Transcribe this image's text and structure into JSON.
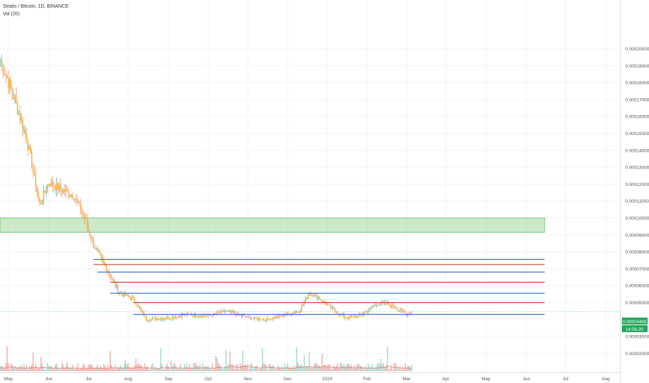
{
  "header": {
    "symbol_line": "Stratis / Bitcoin, 1D, BINANCE",
    "volume_label": "Vol (20)"
  },
  "chart_data": {
    "type": "candlestick",
    "x_ticks": [
      "May",
      "Jun",
      "Jul",
      "Aug",
      "Sep",
      "Oct",
      "Nov",
      "Dec",
      "2020",
      "Feb",
      "Mar",
      "Apr",
      "May",
      "Jun",
      "Jul",
      "Aug"
    ],
    "y_ticks": [
      "0.00020000",
      "0.00019000",
      "0.00018000",
      "0.00017000",
      "0.00016000",
      "0.00015000",
      "0.00014000",
      "0.00013000",
      "0.00012000",
      "0.00011000",
      "0.00010000",
      "0.00009000",
      "0.00008000",
      "0.00007000",
      "0.00006000",
      "0.00005000",
      "0.00003000",
      "0.00002000"
    ],
    "ylim": [
      2e-05,
      0.0002
    ],
    "last_price_label": "0.00004469",
    "countdown_label": "14:56:20",
    "price_path": [
      {
        "date": "2019-04-25",
        "price": 0.000193
      },
      {
        "date": "2019-05-05",
        "price": 0.000172
      },
      {
        "date": "2019-05-15",
        "price": 0.000147
      },
      {
        "date": "2019-05-25",
        "price": 0.000108
      },
      {
        "date": "2019-06-01",
        "price": 0.000121
      },
      {
        "date": "2019-06-10",
        "price": 0.000117
      },
      {
        "date": "2019-06-20",
        "price": 0.000113
      },
      {
        "date": "2019-06-27",
        "price": 0.000102
      },
      {
        "date": "2019-07-05",
        "price": 8.4e-05
      },
      {
        "date": "2019-07-15",
        "price": 7e-05
      },
      {
        "date": "2019-07-25",
        "price": 5.6e-05
      },
      {
        "date": "2019-08-05",
        "price": 5.2e-05
      },
      {
        "date": "2019-08-15",
        "price": 4e-05
      },
      {
        "date": "2019-09-01",
        "price": 4.1e-05
      },
      {
        "date": "2019-09-15",
        "price": 4.3e-05
      },
      {
        "date": "2019-10-01",
        "price": 4.2e-05
      },
      {
        "date": "2019-10-15",
        "price": 4.5e-05
      },
      {
        "date": "2019-11-01",
        "price": 4.1e-05
      },
      {
        "date": "2019-11-15",
        "price": 4e-05
      },
      {
        "date": "2019-12-01",
        "price": 4.3e-05
      },
      {
        "date": "2019-12-10",
        "price": 4.5e-05
      },
      {
        "date": "2019-12-18",
        "price": 5.6e-05
      },
      {
        "date": "2019-12-25",
        "price": 5.3e-05
      },
      {
        "date": "2020-01-05",
        "price": 4.6e-05
      },
      {
        "date": "2020-01-15",
        "price": 4.1e-05
      },
      {
        "date": "2020-01-25",
        "price": 4.2e-05
      },
      {
        "date": "2020-02-01",
        "price": 4.5e-05
      },
      {
        "date": "2020-02-10",
        "price": 5e-05
      },
      {
        "date": "2020-02-20",
        "price": 4.8e-05
      },
      {
        "date": "2020-03-01",
        "price": 4.3e-05
      },
      {
        "date": "2020-03-05",
        "price": 4.47e-05
      }
    ],
    "zone": {
      "from": 9.15e-05,
      "to": 0.0001,
      "start": "2019-05-01",
      "end": "2020-06-15",
      "color": "#8fd08a"
    },
    "levels": [
      {
        "price": 7.55e-05,
        "color": "#3b6fd4",
        "start": "2019-07-05",
        "end": "2020-06-15"
      },
      {
        "price": 7.25e-05,
        "color": "#d43b3b",
        "start": "2019-07-05",
        "end": "2020-06-15"
      },
      {
        "price": 6.8e-05,
        "color": "#3b6fd4",
        "start": "2019-07-08",
        "end": "2020-06-15"
      },
      {
        "price": 6.2e-05,
        "color": "#d43b3b",
        "start": "2019-07-18",
        "end": "2020-06-15"
      },
      {
        "price": 5.55e-05,
        "color": "#3b6fd4",
        "start": "2019-07-18",
        "end": "2020-06-15"
      },
      {
        "price": 5e-05,
        "color": "#d43b3b",
        "start": "2019-08-05",
        "end": "2020-06-15"
      },
      {
        "price": 4.3e-05,
        "color": "#3b6fd4",
        "start": "2019-08-05",
        "end": "2020-06-15"
      }
    ],
    "colors": {
      "up": "#26a69a",
      "down": "#ef5350",
      "candle_body": "#f5b042",
      "price_label_bg": "#26a65b"
    }
  }
}
